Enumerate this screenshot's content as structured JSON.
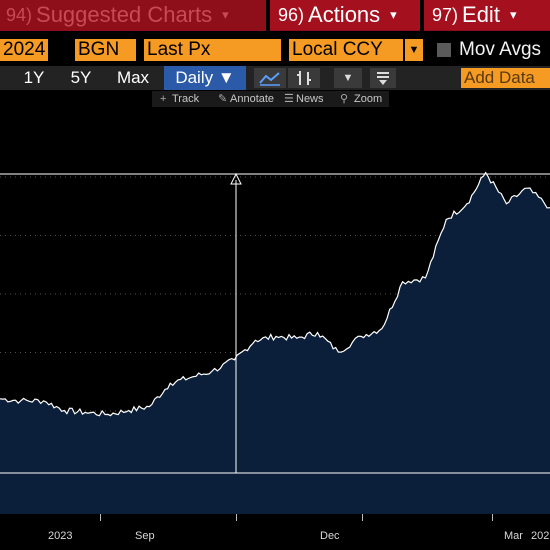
{
  "menu": {
    "suggested": {
      "num": "94)",
      "label": "Suggested Charts"
    },
    "actions": {
      "num": "96)",
      "label": "Actions"
    },
    "edit": {
      "num": "97)",
      "label": "Edit"
    },
    "caret": "▾"
  },
  "params": {
    "date": "2024",
    "source": "BGN",
    "field": "Last Px",
    "currency": "Local CCY",
    "mov_avgs": "Mov Avgs",
    "mov_avgs_checked": false
  },
  "toolbar": {
    "ranges": [
      "1Y",
      "5Y",
      "Max"
    ],
    "frequency": "Daily ▼",
    "add_data": "Add Data"
  },
  "tools": {
    "track": "Track",
    "annotate": "Annotate",
    "news": "News",
    "zoom": "Zoom"
  },
  "xaxis": {
    "labels": [
      "2023",
      "Sep",
      "Dec",
      "Mar",
      "202"
    ]
  },
  "colors": {
    "menu_bg": "#8e0e1a",
    "field_bg": "#f59a23",
    "area_fill": "#0c1f3a",
    "line": "#ffffff",
    "daily_bg": "#2b5aa8"
  },
  "chart_data": {
    "type": "area",
    "title": "",
    "xlabel": "",
    "ylabel": "",
    "x": [
      "2023-07-15",
      "2023-07-25",
      "2023-08-05",
      "2023-08-15",
      "2023-08-25",
      "2023-09-05",
      "2023-09-15",
      "2023-09-25",
      "2023-10-05",
      "2023-10-15",
      "2023-10-25",
      "2023-11-05",
      "2023-11-15",
      "2023-11-25",
      "2023-12-05",
      "2023-12-15",
      "2023-12-25",
      "2024-01-05",
      "2024-01-15",
      "2024-01-25",
      "2024-02-05",
      "2024-02-15",
      "2024-02-25",
      "2024-03-05",
      "2024-03-15",
      "2024-03-25",
      "2024-04-05"
    ],
    "values": [
      28,
      27.5,
      27.5,
      25,
      24.5,
      24,
      25,
      26,
      32,
      33.5,
      35,
      38,
      43,
      44,
      43.5,
      45,
      40,
      44,
      46,
      58,
      59,
      74,
      78,
      86,
      78,
      82,
      77
    ],
    "ylim": [
      0,
      100
    ],
    "grid": true
  }
}
